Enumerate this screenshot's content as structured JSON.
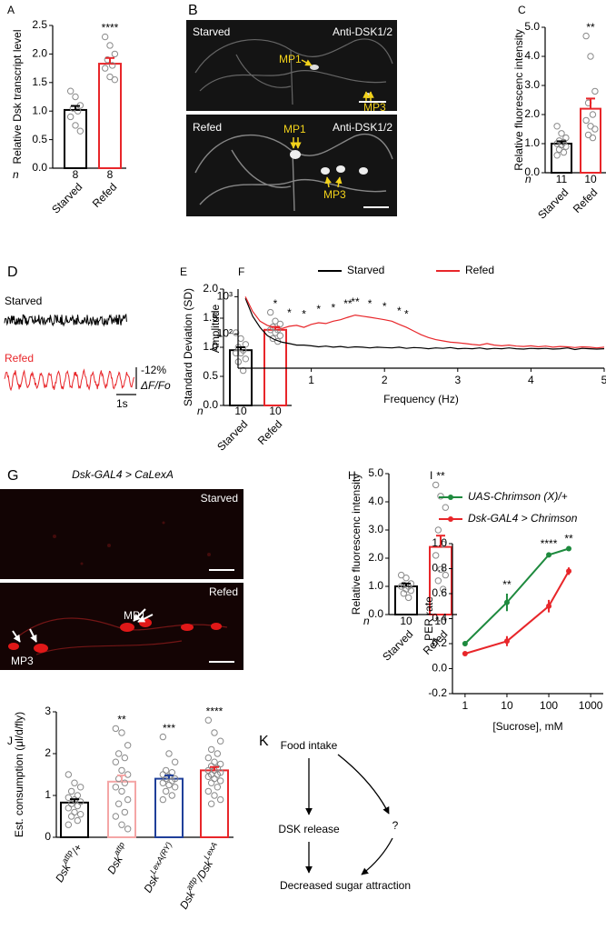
{
  "chart_data": [
    {
      "type": "bar",
      "panel": "A",
      "ylabel": "Relative Dsk transcript level",
      "categories": [
        "Starved",
        "Refed"
      ],
      "values": [
        1.02,
        1.83
      ],
      "errors": [
        0.07,
        0.1
      ],
      "colors": [
        "#000000",
        "#e8262a"
      ],
      "points": [
        [
          1.35,
          1.25,
          1.1,
          1.05,
          1.0,
          0.9,
          0.75,
          0.65
        ],
        [
          2.3,
          2.15,
          2.0,
          1.9,
          1.8,
          1.75,
          1.6,
          1.55
        ]
      ],
      "n_label": "n",
      "n": [
        8,
        8
      ],
      "significance": [
        null,
        "****"
      ],
      "ylim": [
        0,
        2.5
      ],
      "yticks": [
        {
          "value": 0,
          "label": "0.0"
        },
        0.5,
        {
          "value": 1,
          "label": "1.0"
        },
        1.5,
        {
          "value": 2,
          "label": "2.0"
        },
        2.5
      ]
    },
    {
      "type": "bar",
      "panel": "C",
      "ylabel": "Relative fluorescenc intensity",
      "categories": [
        "Starved",
        "Refed"
      ],
      "values": [
        1.0,
        2.2
      ],
      "errors": [
        0.08,
        0.35
      ],
      "colors": [
        "#000000",
        "#e8262a"
      ],
      "points": [
        [
          1.6,
          1.35,
          1.2,
          1.1,
          1.05,
          1.0,
          0.95,
          0.9,
          0.8,
          0.7,
          0.6
        ],
        [
          4.7,
          4.0,
          2.8,
          2.4,
          2.0,
          1.8,
          1.6,
          1.5,
          1.3,
          1.2
        ]
      ],
      "n_label": "n",
      "n": [
        11,
        10
      ],
      "significance": [
        null,
        "**"
      ],
      "ylim": [
        0,
        5
      ],
      "yticks": [
        {
          "value": 0,
          "label": "0.0"
        },
        {
          "value": 1,
          "label": "1.0"
        },
        {
          "value": 2,
          "label": "2.0"
        },
        {
          "value": 3,
          "label": "3.0"
        },
        {
          "value": 4,
          "label": "4.0"
        },
        {
          "value": 5,
          "label": "5.0"
        }
      ]
    },
    {
      "type": "bar",
      "panel": "E",
      "ylabel": "Standard Deviation (SD)",
      "categories": [
        "Starved",
        "Refed"
      ],
      "values": [
        0.95,
        1.3
      ],
      "errors": [
        0.05,
        0.05
      ],
      "colors": [
        "#000000",
        "#e8262a"
      ],
      "points": [
        [
          1.25,
          1.15,
          1.05,
          1.0,
          0.95,
          0.9,
          0.9,
          0.8,
          0.75,
          0.6
        ],
        [
          1.6,
          1.45,
          1.4,
          1.35,
          1.3,
          1.3,
          1.25,
          1.2,
          1.15,
          1.1
        ]
      ],
      "n_label": "n",
      "n": [
        10,
        10
      ],
      "significance": [
        null,
        "*"
      ],
      "ylim": [
        0,
        2
      ],
      "yticks": [
        {
          "value": 0,
          "label": "0.0"
        },
        0.5,
        {
          "value": 1,
          "label": "1.0"
        },
        1.5,
        {
          "value": 2,
          "label": "2.0"
        }
      ]
    },
    {
      "type": "line",
      "panel": "F",
      "xlabel": "Frequency (Hz)",
      "ylabel": "Amplitude",
      "x": [
        0.1,
        0.2,
        0.3,
        0.4,
        0.5,
        0.6,
        0.7,
        0.8,
        0.9,
        1.0,
        1.1,
        1.2,
        1.3,
        1.4,
        1.5,
        1.6,
        1.7,
        1.8,
        1.9,
        2.0,
        2.1,
        2.2,
        2.3,
        2.4,
        2.5,
        2.6,
        2.7,
        2.8,
        2.9,
        3.0,
        3.1,
        3.2,
        3.3,
        3.4,
        3.5,
        3.6,
        3.7,
        3.8,
        3.9,
        4.0,
        4.1,
        4.2,
        4.3,
        4.4,
        4.5,
        4.6,
        4.7,
        4.8,
        4.9,
        5.0
      ],
      "series": [
        {
          "name": "Starved",
          "color": "#000000",
          "values": [
            900,
            300,
            150,
            90,
            70,
            60,
            55,
            50,
            50,
            48,
            45,
            47,
            44,
            46,
            43,
            45,
            44,
            42,
            44,
            43,
            42,
            44,
            41,
            43,
            42,
            40,
            42,
            41,
            43,
            40,
            41,
            40,
            42,
            39,
            41,
            40,
            42,
            40,
            39,
            41,
            40,
            41,
            39,
            40,
            42,
            38,
            41,
            40,
            39,
            40
          ]
        },
        {
          "name": "Refed",
          "color": "#e8262a",
          "values": [
            1000,
            400,
            220,
            170,
            150,
            140,
            160,
            170,
            150,
            180,
            200,
            190,
            220,
            240,
            280,
            320,
            300,
            280,
            260,
            240,
            220,
            180,
            150,
            120,
            95,
            80,
            70,
            65,
            60,
            58,
            55,
            52,
            50,
            55,
            50,
            48,
            50,
            47,
            46,
            48,
            45,
            47,
            44,
            46,
            45,
            43,
            45,
            44,
            42,
            44
          ]
        }
      ],
      "xlim": [
        0,
        5
      ],
      "ylim": [
        12,
        1600
      ],
      "log_y": true,
      "xticks": [
        1,
        2,
        3,
        4,
        5
      ],
      "yticks": [
        {
          "value": 100,
          "label": "10²"
        },
        {
          "value": 1000,
          "label": "10³"
        }
      ],
      "annotations": [
        {
          "x": 0.7,
          "label": "*"
        },
        {
          "x": 0.9,
          "label": "*"
        },
        {
          "x": 1.1,
          "label": "*"
        },
        {
          "x": 1.3,
          "label": "*"
        },
        {
          "x": 1.5,
          "label": "**"
        },
        {
          "x": 1.6,
          "label": "**"
        },
        {
          "x": 1.8,
          "label": "*"
        },
        {
          "x": 2.0,
          "label": "*"
        },
        {
          "x": 2.2,
          "label": "*"
        },
        {
          "x": 2.3,
          "label": "*"
        }
      ]
    },
    {
      "type": "bar",
      "panel": "H",
      "ylabel": "Relative fluorescenc intensity",
      "categories": [
        "Starved",
        "Refed"
      ],
      "values": [
        1.0,
        2.4
      ],
      "errors": [
        0.1,
        0.4
      ],
      "colors": [
        "#000000",
        "#e8262a"
      ],
      "points": [
        [
          1.4,
          1.3,
          1.1,
          1.05,
          1.0,
          1.0,
          0.9,
          0.85,
          0.75,
          0.6
        ],
        [
          4.6,
          4.2,
          3.8,
          3.0,
          2.5,
          2.1,
          1.6,
          1.4,
          1.2,
          0.9
        ]
      ],
      "n_label": "n",
      "n": [
        10,
        10
      ],
      "significance": [
        null,
        "**"
      ],
      "ylim": [
        0,
        5
      ],
      "yticks": [
        {
          "value": 0,
          "label": "0.0"
        },
        {
          "value": 1,
          "label": "1.0"
        },
        {
          "value": 2,
          "label": "2.0"
        },
        {
          "value": 3,
          "label": "3.0"
        },
        {
          "value": 4,
          "label": "4.0"
        },
        {
          "value": 5,
          "label": "5.0"
        }
      ]
    },
    {
      "type": "line",
      "panel": "I",
      "xlabel": "[Sucrose], mM",
      "ylabel": "PER rate",
      "x": [
        1,
        10,
        100,
        300
      ],
      "log_x": true,
      "markers": true,
      "series": [
        {
          "name": "UAS-Chrimson (X)/+",
          "color": "#1e8a3e",
          "values": [
            0.2,
            0.53,
            0.91,
            0.96
          ],
          "errors": [
            0.02,
            0.07,
            0.02,
            0.01
          ]
        },
        {
          "name": "Dsk-GAL4 > Chrimson",
          "color": "#e8262a",
          "values": [
            0.12,
            0.22,
            0.5,
            0.78
          ],
          "errors": [
            0.01,
            0.04,
            0.05,
            0.03
          ]
        }
      ],
      "xlim": [
        0.5,
        2000
      ],
      "ylim": [
        -0.2,
        1.0
      ],
      "xticks": [
        1,
        10,
        100,
        1000
      ],
      "yticks": [
        -0.2,
        {
          "value": 0,
          "label": "0.0"
        },
        0.2,
        0.4,
        0.6,
        0.8,
        {
          "value": 1,
          "label": "1.0"
        }
      ],
      "annotations": [
        {
          "x": 10,
          "label": "**"
        },
        {
          "x": 100,
          "label": "****"
        },
        {
          "x": 300,
          "label": "**"
        }
      ]
    },
    {
      "type": "bar",
      "panel": "J",
      "ylabel": "Est. consumption (μl/d/fly)",
      "categories": [
        [
          "Dsk",
          "attp",
          "/+"
        ],
        [
          "Dsk",
          "attp"
        ],
        [
          "Dsk",
          "LexA(RY)"
        ],
        [
          "Dsk",
          "attp",
          "/Dsk",
          "LexA"
        ]
      ],
      "values": [
        0.83,
        1.33,
        1.4,
        1.6
      ],
      "errors": [
        0.08,
        0.15,
        0.08,
        0.08
      ],
      "colors": [
        "#000000",
        "#f4a6a6",
        "#1f3f99",
        "#e8262a"
      ],
      "points": [
        [
          1.5,
          1.3,
          1.2,
          1.1,
          1.0,
          0.95,
          0.9,
          0.85,
          0.8,
          0.75,
          0.7,
          0.6,
          0.55,
          0.5,
          0.4,
          0.3
        ],
        [
          2.6,
          2.5,
          2.2,
          2.0,
          1.9,
          1.8,
          1.6,
          1.5,
          1.4,
          1.3,
          1.2,
          1.1,
          0.9,
          0.8,
          0.6,
          0.5,
          0.3,
          0.2
        ],
        [
          2.4,
          2.0,
          1.8,
          1.6,
          1.55,
          1.5,
          1.45,
          1.4,
          1.4,
          1.35,
          1.3,
          1.25,
          1.2,
          1.1,
          1.0,
          0.9
        ],
        [
          2.8,
          2.5,
          2.3,
          2.1,
          2.0,
          1.9,
          1.8,
          1.75,
          1.7,
          1.65,
          1.6,
          1.6,
          1.55,
          1.5,
          1.5,
          1.45,
          1.4,
          1.35,
          1.3,
          1.2,
          1.1,
          1.0,
          0.9,
          0.8
        ]
      ],
      "significance": [
        null,
        "**",
        "***",
        "****"
      ],
      "ylim": [
        0,
        3
      ],
      "yticks": [
        0,
        1,
        2,
        3
      ]
    }
  ],
  "images": [
    {
      "panel": "B",
      "rows": [
        {
          "condition": "Starved",
          "stain": "Anti-DSK1/2",
          "labels": [
            "MP1",
            "MP3"
          ]
        },
        {
          "condition": "Refed",
          "stain": "Anti-DSK1/2",
          "labels": [
            "MP1",
            "MP3"
          ]
        }
      ]
    },
    {
      "panel": "G",
      "title": "Dsk-GAL4 > CaLexA",
      "rows": [
        {
          "condition": "Starved"
        },
        {
          "condition": "Refed",
          "labels": [
            "MP1",
            "MP3"
          ]
        }
      ]
    }
  ],
  "traces": {
    "panel": "D",
    "rows": [
      "Starved",
      "Refed"
    ],
    "scale_y": "-12%",
    "scale_y_unit": "ΔF/Fo",
    "scale_x": "1s"
  },
  "diagram": {
    "panel": "K",
    "nodes": [
      "Food intake",
      "DSK release",
      "?",
      "Decreased sugar attraction"
    ]
  }
}
